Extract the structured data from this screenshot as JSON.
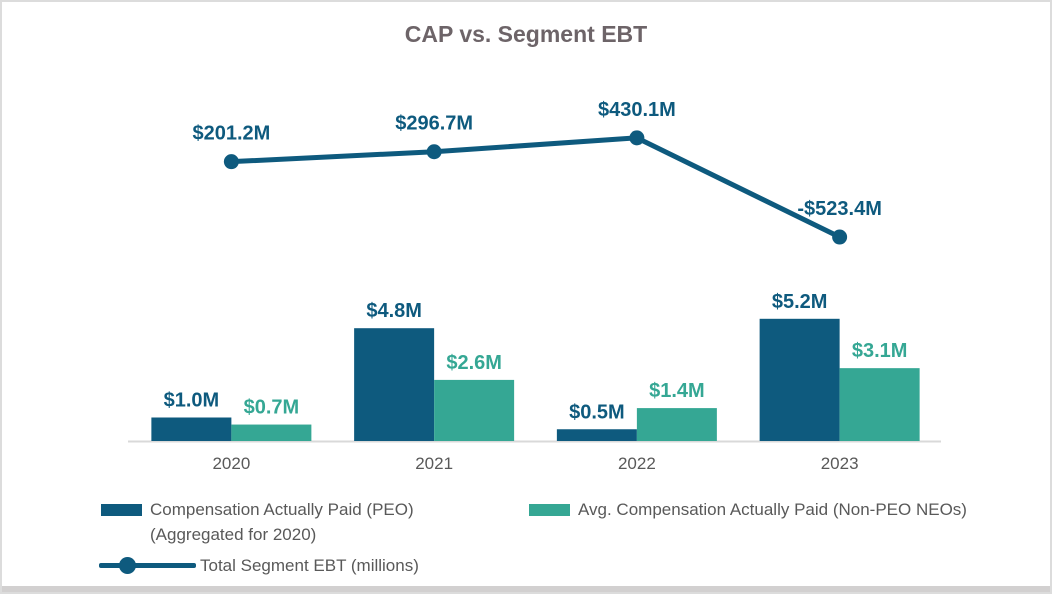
{
  "title": "CAP vs. Segment EBT",
  "colors": {
    "peo_bar": "#0e5a7e",
    "neo_bar": "#35a794",
    "ebt_line": "#0e5a7e",
    "title_text": "#6d6468",
    "axis_text": "#595959",
    "axis_line": "#d9d9d9",
    "frame_border": "#dcdcdc",
    "bottom_band": "#d2d0d0"
  },
  "chart_data": {
    "type": "combo-bar-line",
    "categories": [
      "2020",
      "2021",
      "2022",
      "2023"
    ],
    "series": [
      {
        "name": "Compensation Actually Paid (PEO) (Aggregated for 2020)",
        "chart_type": "bar",
        "color": "#0e5a7e",
        "values": [
          1.0,
          4.8,
          0.5,
          5.2
        ],
        "data_labels": [
          "$1.0M",
          "$4.8M",
          "$0.5M",
          "$5.2M"
        ]
      },
      {
        "name": "Avg. Compensation Actually Paid (Non-PEO NEOs)",
        "chart_type": "bar",
        "color": "#35a794",
        "values": [
          0.7,
          2.6,
          1.4,
          3.1
        ],
        "data_labels": [
          "$0.7M",
          "$2.6M",
          "$1.4M",
          "$3.1M"
        ]
      },
      {
        "name": "Total Segment EBT (millions)",
        "chart_type": "line",
        "color": "#0e5a7e",
        "values": [
          201.2,
          296.7,
          430.1,
          -523.4
        ],
        "data_labels": [
          "$201.2M",
          "$296.7M",
          "$430.1M",
          "-$523.4M"
        ]
      }
    ],
    "bar_axis": {
      "min": 0,
      "max": 6,
      "visible": false
    },
    "line_axis": {
      "min": -600,
      "max": 650,
      "visible": false
    },
    "grid": false,
    "legend_position": "bottom"
  },
  "legend": {
    "items": [
      {
        "label": "Compensation Actually Paid (PEO)",
        "label_line2": "(Aggregated for 2020)",
        "marker": "swatch",
        "color": "#0e5a7e"
      },
      {
        "label": "Avg. Compensation Actually Paid (Non-PEO NEOs)",
        "marker": "swatch",
        "color": "#35a794"
      },
      {
        "label": "Total Segment EBT (millions)",
        "marker": "line-dot",
        "color": "#0e5a7e"
      }
    ]
  }
}
